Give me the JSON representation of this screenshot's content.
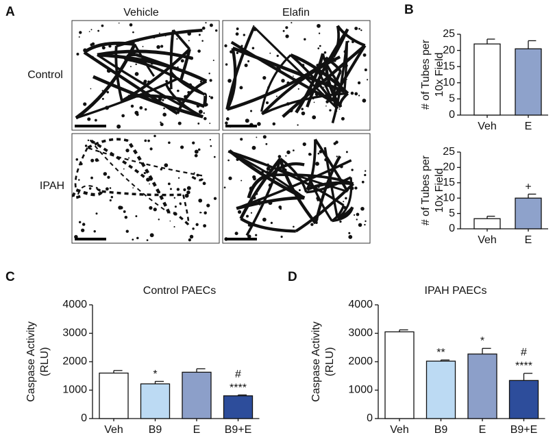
{
  "panel_a": {
    "label": "A",
    "columns": [
      "Vehicle",
      "Elafin"
    ],
    "rows": [
      "Control",
      "IPAH"
    ]
  },
  "chart_data": [
    {
      "type": "bar",
      "panel_label": "B",
      "ylabel": [
        "# of Tubes per",
        "10x Field"
      ],
      "categories": [
        "Veh",
        "E"
      ],
      "values": [
        22,
        20.5
      ],
      "errors": [
        1.5,
        2.5
      ],
      "colors": [
        "#ffffff",
        "#8ea2cb"
      ],
      "ylim": [
        0,
        25
      ],
      "yticks": [
        0,
        5,
        10,
        15,
        20,
        25
      ]
    },
    {
      "type": "bar",
      "ylabel": [
        "# of Tubes per",
        "10x Field"
      ],
      "categories": [
        "Veh",
        "E"
      ],
      "values": [
        3.3,
        10
      ],
      "errors": [
        0.8,
        1.3
      ],
      "annotations": [
        null,
        [
          "+"
        ]
      ],
      "colors": [
        "#ffffff",
        "#8ea2cb"
      ],
      "ylim": [
        0,
        25
      ],
      "yticks": [
        0,
        5,
        10,
        15,
        20,
        25
      ]
    },
    {
      "type": "bar",
      "panel_label": "C",
      "title": "Control PAECs",
      "ylabel": [
        "Caspase Activity",
        "(RLU)"
      ],
      "categories": [
        "Veh",
        "B9",
        "E",
        "B9+E"
      ],
      "values": [
        1600,
        1220,
        1630,
        800
      ],
      "errors": [
        90,
        90,
        120,
        30
      ],
      "annotations": [
        null,
        [
          "*"
        ],
        null,
        [
          "#",
          "****"
        ]
      ],
      "colors": [
        "#ffffff",
        "#bcdaf3",
        "#8c9fc9",
        "#2d4d9b"
      ],
      "ylim": [
        0,
        4000
      ],
      "yticks": [
        0,
        1000,
        2000,
        3000,
        4000
      ]
    },
    {
      "type": "bar",
      "panel_label": "D",
      "title": "IPAH PAECs",
      "ylabel": [
        "Caspase Activity",
        "(RLU)"
      ],
      "categories": [
        "Veh",
        "B9",
        "E",
        "B9+E"
      ],
      "values": [
        3050,
        2020,
        2270,
        1340
      ],
      "errors": [
        70,
        40,
        200,
        250
      ],
      "annotations": [
        null,
        [
          "**"
        ],
        [
          "*"
        ],
        [
          "#",
          "****"
        ]
      ],
      "colors": [
        "#ffffff",
        "#bcdaf3",
        "#8c9fc9",
        "#2d4d9b"
      ],
      "ylim": [
        0,
        4000
      ],
      "yticks": [
        0,
        1000,
        2000,
        3000,
        4000
      ]
    }
  ]
}
